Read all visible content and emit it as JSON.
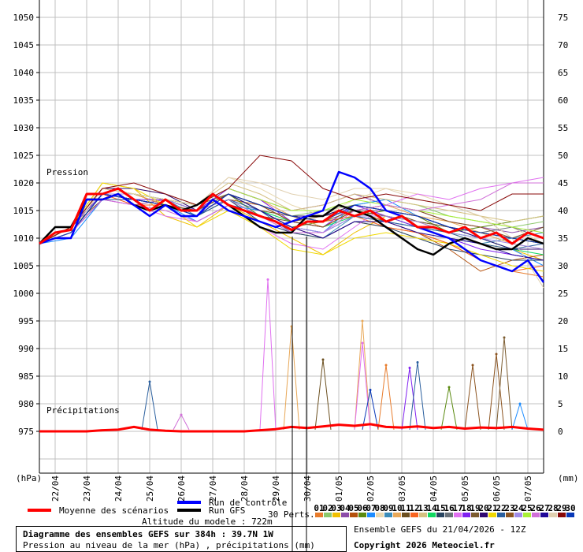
{
  "chart_data": {
    "type": "line",
    "title": "Diagramme des ensembles GEFS sur 384h : 39.7N 1W",
    "subtitle": "Pression au niveau de la mer (hPa) , précipitations (mm)",
    "run_info": "Ensemble GEFS du 21/04/2026 - 12Z",
    "copyright": "Copyright 2026 Meteociel.fr",
    "altitude": "Altitude du modele : 722m",
    "ylabel_left": "(hPa)",
    "ylabel_right": "(mm)",
    "section_pressure": "Pression",
    "section_precip": "Précipitations",
    "ylim_left": [
      975,
      1050
    ],
    "yticks_left": [
      "1050",
      "1045",
      "1040",
      "1035",
      "1030",
      "1025",
      "1020",
      "1015",
      "1010",
      "1005",
      "1000",
      "995",
      "990",
      "985",
      "980",
      "975"
    ],
    "ylim_right": [
      0,
      75
    ],
    "yticks_right": [
      "75",
      "70",
      "65",
      "60",
      "55",
      "50",
      "45",
      "40",
      "35",
      "30",
      "25",
      "20",
      "15",
      "10",
      "5",
      "0"
    ],
    "x_start": "21/04 12Z",
    "x_end": "07/05 12Z",
    "xticks": [
      "22/04",
      "23/04",
      "24/04",
      "25/04",
      "26/04",
      "27/04",
      "28/04",
      "29/04",
      "30/04",
      "01/05",
      "02/05",
      "03/05",
      "04/05",
      "05/05",
      "06/05",
      "07/05"
    ],
    "grid": true,
    "legend": {
      "mean": {
        "label": "Moyenne des scénarios",
        "color": "#ff0000"
      },
      "control": {
        "label": "Run de contrôle",
        "color": "#0000ff"
      },
      "gfs": {
        "label": "Run GFS",
        "color": "#000000"
      },
      "perts_label": "30 Perts.",
      "members": [
        {
          "id": "01",
          "color": "#e87c2c"
        },
        {
          "id": "02",
          "color": "#8cc86c"
        },
        {
          "id": "03",
          "color": "#f0c000"
        },
        {
          "id": "04",
          "color": "#8c4ca8"
        },
        {
          "id": "05",
          "color": "#b4500c"
        },
        {
          "id": "06",
          "color": "#5a8a10"
        },
        {
          "id": "07",
          "color": "#1c8cff"
        },
        {
          "id": "08",
          "color": "#e8d8b0"
        },
        {
          "id": "09",
          "color": "#3c8cb8"
        },
        {
          "id": "10",
          "color": "#e8a858"
        },
        {
          "id": "11",
          "color": "#6c5020"
        },
        {
          "id": "12",
          "color": "#f86420"
        },
        {
          "id": "13",
          "color": "#d4c080"
        },
        {
          "id": "14",
          "color": "#10d860"
        },
        {
          "id": "15",
          "color": "#284460"
        },
        {
          "id": "16",
          "color": "#687078"
        },
        {
          "id": "17",
          "color": "#e070f0"
        },
        {
          "id": "18",
          "color": "#8020f0"
        },
        {
          "id": "19",
          "color": "#7c5c30"
        },
        {
          "id": "20",
          "color": "#300870"
        },
        {
          "id": "21",
          "color": "#f0d800"
        },
        {
          "id": "22",
          "color": "#2a5f9e"
        },
        {
          "id": "23",
          "color": "#8c5420"
        },
        {
          "id": "24",
          "color": "#a08ce8"
        },
        {
          "id": "25",
          "color": "#a8f038"
        },
        {
          "id": "26",
          "color": "#d070d8"
        },
        {
          "id": "27",
          "color": "#200898"
        },
        {
          "id": "28",
          "color": "#e0d0b0"
        },
        {
          "id": "29",
          "color": "#880808"
        },
        {
          "id": "30",
          "color": "#0838b8"
        }
      ]
    },
    "pressure_mean_12h": [
      1009,
      1011,
      1011.5,
      1018,
      1018,
      1019,
      1017,
      1015,
      1017,
      1015,
      1015,
      1018,
      1016,
      1015,
      1014,
      1013,
      1011.5,
      1013,
      1013,
      1015,
      1014,
      1015,
      1013,
      1014,
      1012,
      1012,
      1011,
      1012,
      1010,
      1011,
      1009,
      1011,
      1010
    ],
    "pressure_control_12h": [
      1009,
      1010,
      1010,
      1017,
      1017,
      1018,
      1016,
      1014,
      1016,
      1014,
      1014,
      1017,
      1015,
      1014,
      1013,
      1012,
      1013,
      1014,
      1015,
      1022,
      1021,
      1019,
      1015,
      1014,
      1012,
      1011,
      1010,
      1008,
      1006,
      1005,
      1004,
      1006,
      1002
    ],
    "pressure_gfs_12h": [
      1009,
      1012,
      1012,
      1017,
      1017,
      1018,
      1016,
      1015,
      1016,
      1015,
      1016,
      1018,
      1016,
      1014,
      1012,
      1011,
      1011,
      1014,
      1014,
      1016,
      1015,
      1014,
      1012,
      1010,
      1008,
      1007,
      1009,
      1010,
      1009,
      1008,
      1008,
      1010,
      1009
    ],
    "pressure_members_24h": [
      [
        1009,
        1012,
        1019,
        1018,
        1016,
        1014,
        1017,
        1014,
        1012,
        1010,
        1013,
        1012,
        1011,
        1009,
        1006,
        1004,
        1003
      ],
      [
        1009,
        1011,
        1018,
        1017,
        1017,
        1016,
        1018,
        1016,
        1014,
        1015,
        1016,
        1017,
        1016,
        1014,
        1013,
        1012,
        1013
      ],
      [
        1009,
        1012,
        1020,
        1019,
        1014,
        1012,
        1016,
        1013,
        1010,
        1007,
        1011,
        1014,
        1013,
        1011,
        1009,
        1008,
        1006
      ],
      [
        1009,
        1011,
        1017,
        1016,
        1017,
        1015,
        1019,
        1017,
        1015,
        1016,
        1018,
        1016,
        1015,
        1013,
        1012,
        1011,
        1012
      ],
      [
        1009,
        1011,
        1018,
        1018,
        1016,
        1015,
        1017,
        1016,
        1013,
        1012,
        1015,
        1013,
        1011,
        1008,
        1004,
        1006,
        1007
      ],
      [
        1009,
        1012,
        1018,
        1017,
        1017,
        1015,
        1018,
        1014,
        1012,
        1013,
        1014,
        1015,
        1014,
        1011,
        1012,
        1013,
        1014
      ],
      [
        1009,
        1010,
        1017,
        1017,
        1016,
        1013,
        1016,
        1015,
        1012,
        1011,
        1016,
        1017,
        1014,
        1012,
        1010,
        1008,
        1005
      ],
      [
        1009,
        1011,
        1020,
        1019,
        1018,
        1016,
        1021,
        1019,
        1016,
        1014,
        1017,
        1019,
        1018,
        1016,
        1014,
        1012,
        1009
      ],
      [
        1009,
        1011,
        1018,
        1018,
        1017,
        1014,
        1018,
        1015,
        1011,
        1010,
        1014,
        1013,
        1012,
        1010,
        1009,
        1010,
        1011
      ],
      [
        1009,
        1012,
        1019,
        1018,
        1016,
        1015,
        1019,
        1017,
        1014,
        1012,
        1015,
        1016,
        1014,
        1013,
        1011,
        1009,
        1008
      ],
      [
        1009,
        1012,
        1017,
        1017,
        1017,
        1015,
        1017,
        1014,
        1013,
        1014,
        1016,
        1015,
        1013,
        1012,
        1011,
        1010,
        1009
      ],
      [
        1009,
        1011,
        1018,
        1016,
        1016,
        1014,
        1018,
        1016,
        1014,
        1013,
        1014,
        1012,
        1011,
        1009,
        1006,
        1004,
        1005
      ],
      [
        1009,
        1011,
        1019,
        1018,
        1017,
        1016,
        1020,
        1018,
        1015,
        1016,
        1018,
        1017,
        1016,
        1015,
        1014,
        1013,
        1014
      ],
      [
        1009,
        1012,
        1018,
        1018,
        1017,
        1015,
        1018,
        1015,
        1013,
        1012,
        1014,
        1014,
        1012,
        1011,
        1010,
        1008,
        1007
      ],
      [
        1009,
        1011,
        1017,
        1017,
        1016,
        1014,
        1017,
        1013,
        1011,
        1010,
        1013,
        1012,
        1010,
        1008,
        1007,
        1006,
        1006
      ],
      [
        1009,
        1011,
        1018,
        1018,
        1017,
        1015,
        1018,
        1016,
        1014,
        1014,
        1015,
        1015,
        1014,
        1012,
        1011,
        1012,
        1010
      ],
      [
        1009,
        1011,
        1017,
        1016,
        1014,
        1013,
        1016,
        1012,
        1009,
        1008,
        1012,
        1016,
        1018,
        1017,
        1019,
        1020,
        1021
      ],
      [
        1009,
        1012,
        1018,
        1017,
        1017,
        1015,
        1019,
        1017,
        1013,
        1012,
        1016,
        1014,
        1012,
        1010,
        1008,
        1007,
        1006
      ],
      [
        1009,
        1011,
        1018,
        1018,
        1017,
        1016,
        1018,
        1015,
        1014,
        1013,
        1015,
        1014,
        1013,
        1012,
        1011,
        1010,
        1012
      ],
      [
        1009,
        1012,
        1019,
        1019,
        1018,
        1015,
        1018,
        1016,
        1014,
        1014,
        1016,
        1015,
        1014,
        1012,
        1010,
        1008,
        1008
      ],
      [
        1009,
        1012,
        1020,
        1019,
        1016,
        1012,
        1015,
        1012,
        1008,
        1007,
        1010,
        1011,
        1010,
        1009,
        1007,
        1005,
        1004
      ],
      [
        1009,
        1011,
        1017,
        1017,
        1016,
        1014,
        1017,
        1015,
        1012,
        1011,
        1014,
        1013,
        1012,
        1011,
        1009,
        1008,
        1009
      ],
      [
        1009,
        1011,
        1018,
        1017,
        1016,
        1015,
        1018,
        1016,
        1013,
        1012,
        1015,
        1016,
        1015,
        1013,
        1012,
        1010,
        1009
      ],
      [
        1009,
        1011,
        1018,
        1018,
        1017,
        1015,
        1017,
        1014,
        1012,
        1011,
        1014,
        1014,
        1013,
        1011,
        1010,
        1009,
        1008
      ],
      [
        1009,
        1012,
        1019,
        1018,
        1017,
        1016,
        1019,
        1017,
        1015,
        1015,
        1017,
        1016,
        1015,
        1014,
        1013,
        1012,
        1011
      ],
      [
        1009,
        1011,
        1017,
        1016,
        1015,
        1013,
        1016,
        1014,
        1011,
        1011,
        1015,
        1016,
        1015,
        1016,
        1017,
        1020,
        1020
      ],
      [
        1009,
        1011,
        1018,
        1017,
        1016,
        1014,
        1018,
        1015,
        1012,
        1010,
        1013,
        1013,
        1011,
        1010,
        1009,
        1007,
        1006
      ],
      [
        1009,
        1011,
        1019,
        1018,
        1017,
        1016,
        1021,
        1020,
        1018,
        1017,
        1019,
        1019,
        1017,
        1016,
        1014,
        1010,
        1001
      ],
      [
        1009,
        1012,
        1019,
        1020,
        1018,
        1016,
        1019,
        1025,
        1024,
        1019,
        1017,
        1018,
        1017,
        1016,
        1015,
        1018,
        1018
      ],
      [
        1009,
        1011,
        1018,
        1017,
        1016,
        1014,
        1018,
        1016,
        1014,
        1013,
        1016,
        1015,
        1014,
        1012,
        1011,
        1010,
        1009
      ]
    ],
    "precip_mean_12h": [
      0,
      0,
      0,
      0,
      0.2,
      0.3,
      0.8,
      0.3,
      0.1,
      0,
      0,
      0,
      0,
      0,
      0.2,
      0.4,
      0.8,
      0.6,
      0.9,
      1.2,
      1.0,
      1.3,
      0.8,
      0.7,
      0.9,
      0.6,
      0.8,
      0.5,
      0.7,
      0.6,
      0.8,
      0.5,
      0.3
    ],
    "precip_peaks": [
      {
        "member": "22",
        "time": "25/04 00Z",
        "value": 9
      },
      {
        "member": "26",
        "time": "26/04 00Z",
        "value": 3
      },
      {
        "member": "17",
        "time": "28/04 18Z",
        "value": 27.5
      },
      {
        "member": "10",
        "time": "29/04 12Z",
        "value": 19
      },
      {
        "member": "11",
        "time": "30/04 12Z",
        "value": 13
      },
      {
        "member": "10",
        "time": "01/05 18Z",
        "value": 20
      },
      {
        "member": "17",
        "time": "01/05 18Z",
        "value": 16
      },
      {
        "member": "30",
        "time": "02/05 00Z",
        "value": 7.5
      },
      {
        "member": "01",
        "time": "02/05 12Z",
        "value": 12
      },
      {
        "member": "18",
        "time": "03/05 06Z",
        "value": 11.5
      },
      {
        "member": "22",
        "time": "03/05 12Z",
        "value": 12.5
      },
      {
        "member": "06",
        "time": "04/05 12Z",
        "value": 8
      },
      {
        "member": "23",
        "time": "05/05 06Z",
        "value": 12
      },
      {
        "member": "23",
        "time": "06/05 00Z",
        "value": 14
      },
      {
        "member": "19",
        "time": "06/05 06Z",
        "value": 17
      },
      {
        "member": "07",
        "time": "06/05 18Z",
        "value": 5
      }
    ]
  }
}
